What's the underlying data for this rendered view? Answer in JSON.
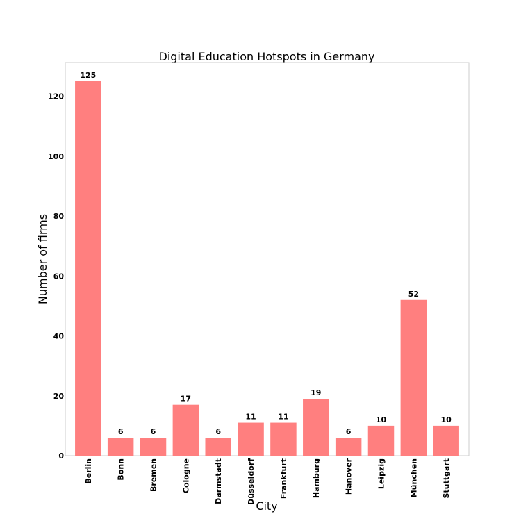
{
  "chart_data": {
    "type": "bar",
    "title": "Digital Education Hotspots in Germany",
    "xlabel": "City",
    "ylabel": "Number of firms",
    "categories": [
      "Berlin",
      "Bonn",
      "Bremen",
      "Cologne",
      "Darmstadt",
      "Düsseldorf",
      "Frankfurt",
      "Hamburg",
      "Hanover",
      "Leipzig",
      "München",
      "Stuttgart"
    ],
    "values": [
      125,
      6,
      6,
      17,
      6,
      11,
      11,
      19,
      6,
      10,
      52,
      10
    ],
    "ylim": [
      0,
      131.25
    ],
    "yticks": [
      0,
      20,
      40,
      60,
      80,
      100,
      120
    ],
    "bar_color": "#ff7f7f",
    "frame_color": "#cccccc",
    "grid": false,
    "legend": false
  }
}
